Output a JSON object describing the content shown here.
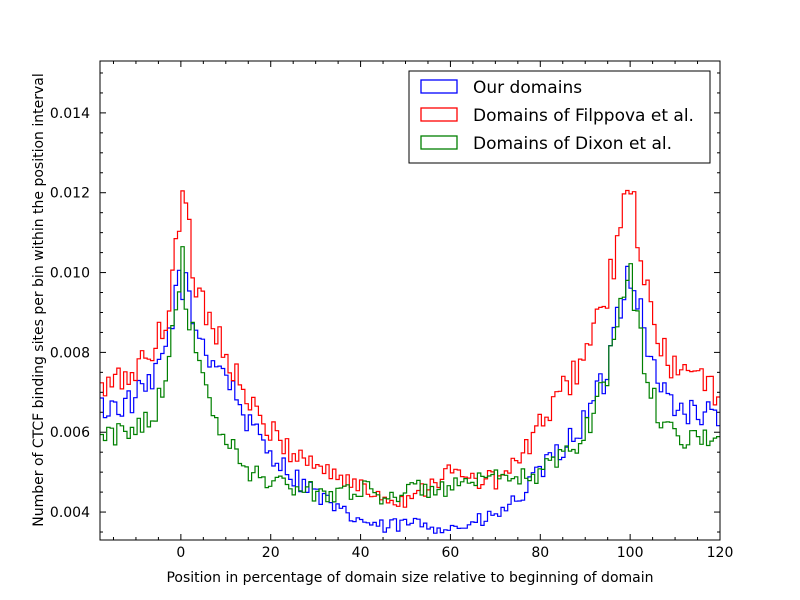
{
  "chart_data": {
    "type": "line",
    "title": "",
    "xlabel": "Position in percentage of domain size relative to beginning of domain",
    "ylabel": "Number of CTCF binding sites per bin within the position interval",
    "xlim": [
      -18,
      120
    ],
    "ylim": [
      0.0033,
      0.0153
    ],
    "x_ticks": [
      0,
      20,
      40,
      60,
      80,
      100,
      120
    ],
    "y_ticks": [
      0.004,
      0.006,
      0.008,
      0.01,
      0.012,
      0.014
    ],
    "x_tick_labels": [
      "0",
      "20",
      "40",
      "60",
      "80",
      "100",
      "120"
    ],
    "y_tick_labels": [
      "0.004",
      "0.006",
      "0.008",
      "0.010",
      "0.012",
      "0.014"
    ],
    "grid": false,
    "legend_position": "top-right",
    "series": [
      {
        "name": "Our domains",
        "color": "#0000ff",
        "x": [
          -18,
          -12,
          -6,
          -3,
          0,
          3,
          6,
          10,
          15,
          20,
          25,
          30,
          35,
          40,
          45,
          50,
          55,
          60,
          65,
          70,
          75,
          80,
          85,
          90,
          95,
          97,
          100,
          103,
          106,
          110,
          115,
          120
        ],
        "y": [
          0.0066,
          0.0067,
          0.0072,
          0.0083,
          0.01,
          0.0087,
          0.008,
          0.0075,
          0.0062,
          0.0055,
          0.0049,
          0.0045,
          0.004,
          0.0038,
          0.0036,
          0.0037,
          0.0037,
          0.0036,
          0.0037,
          0.0039,
          0.0043,
          0.005,
          0.0056,
          0.0063,
          0.0075,
          0.009,
          0.0102,
          0.0087,
          0.0072,
          0.0067,
          0.0064,
          0.0065
        ]
      },
      {
        "name": "Domains of Filppova et al.",
        "color": "#ff0000",
        "x": [
          -18,
          -12,
          -6,
          -3,
          0,
          3,
          6,
          10,
          15,
          20,
          25,
          30,
          35,
          40,
          45,
          50,
          55,
          60,
          65,
          70,
          75,
          80,
          85,
          90,
          95,
          97,
          100,
          103,
          106,
          110,
          115,
          120
        ],
        "y": [
          0.007,
          0.0074,
          0.008,
          0.009,
          0.012,
          0.01,
          0.009,
          0.008,
          0.0067,
          0.006,
          0.0055,
          0.0052,
          0.0049,
          0.0046,
          0.0044,
          0.0043,
          0.0047,
          0.005,
          0.0048,
          0.0048,
          0.0052,
          0.0062,
          0.007,
          0.008,
          0.0095,
          0.0105,
          0.0122,
          0.01,
          0.0082,
          0.0076,
          0.0073,
          0.007
        ]
      },
      {
        "name": "Domains of Dixon et al.",
        "color": "#008000",
        "x": [
          -18,
          -12,
          -6,
          -3,
          0,
          3,
          6,
          10,
          15,
          20,
          25,
          30,
          35,
          40,
          45,
          50,
          55,
          60,
          65,
          70,
          75,
          80,
          85,
          90,
          95,
          97,
          100,
          103,
          106,
          110,
          115,
          120
        ],
        "y": [
          0.0058,
          0.006,
          0.0065,
          0.0076,
          0.0104,
          0.008,
          0.0068,
          0.0058,
          0.005,
          0.0048,
          0.0046,
          0.0045,
          0.0045,
          0.0046,
          0.0044,
          0.0045,
          0.0046,
          0.0046,
          0.0047,
          0.0048,
          0.0048,
          0.005,
          0.0054,
          0.006,
          0.0075,
          0.0088,
          0.0102,
          0.0077,
          0.0065,
          0.006,
          0.0058,
          0.006
        ]
      }
    ]
  }
}
